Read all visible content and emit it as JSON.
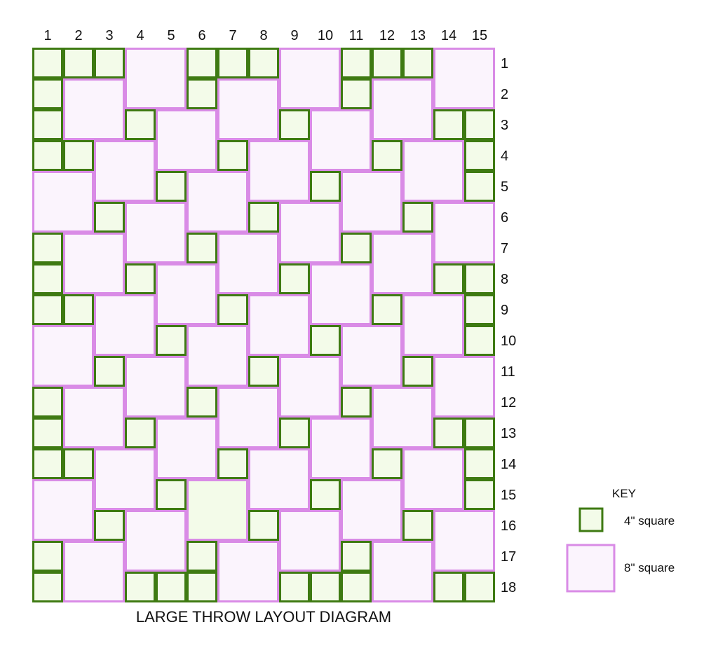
{
  "title": "LARGE THROW  LAYOUT DIAGRAM",
  "column_labels": [
    "1",
    "2",
    "3",
    "4",
    "5",
    "6",
    "7",
    "8",
    "9",
    "10",
    "11",
    "12",
    "13",
    "14",
    "15"
  ],
  "row_labels": [
    "1",
    "2",
    "3",
    "4",
    "5",
    "6",
    "7",
    "8",
    "9",
    "10",
    "11",
    "12",
    "13",
    "14",
    "15",
    "16",
    "17",
    "18"
  ],
  "key": {
    "heading": "KEY",
    "small_label": "4\" square",
    "large_label": "8\" square"
  },
  "colors": {
    "small_fill": "#f3fbe9",
    "small_stroke": "#3e7a12",
    "large_fill": "#fbf4fd",
    "large_stroke": "#d98be6",
    "grid_background": "#d98be6"
  },
  "large_squares": [
    [
      1,
      4
    ],
    [
      1,
      9
    ],
    [
      1,
      14
    ],
    [
      2,
      2
    ],
    [
      2,
      7
    ],
    [
      2,
      12
    ],
    [
      3,
      5
    ],
    [
      3,
      10
    ],
    [
      4,
      3
    ],
    [
      4,
      8
    ],
    [
      4,
      13
    ],
    [
      5,
      1
    ],
    [
      5,
      6
    ],
    [
      5,
      11
    ],
    [
      6,
      4
    ],
    [
      6,
      9
    ],
    [
      6,
      14
    ],
    [
      7,
      2
    ],
    [
      7,
      7
    ],
    [
      7,
      12
    ],
    [
      8,
      5
    ],
    [
      8,
      10
    ],
    [
      9,
      3
    ],
    [
      9,
      8
    ],
    [
      9,
      13
    ],
    [
      10,
      1
    ],
    [
      10,
      6
    ],
    [
      10,
      11
    ],
    [
      11,
      4
    ],
    [
      11,
      9
    ],
    [
      11,
      14
    ],
    [
      12,
      2
    ],
    [
      12,
      7
    ],
    [
      12,
      12
    ],
    [
      13,
      5
    ],
    [
      13,
      10
    ],
    [
      14,
      3
    ],
    [
      14,
      8
    ],
    [
      14,
      13
    ],
    [
      15,
      1
    ],
    [
      15,
      11
    ],
    [
      16,
      4
    ],
    [
      16,
      9
    ],
    [
      16,
      14
    ],
    [
      17,
      2
    ],
    [
      17,
      7
    ],
    [
      17,
      12
    ]
  ],
  "large_green_squares": [
    [
      15,
      6
    ]
  ]
}
